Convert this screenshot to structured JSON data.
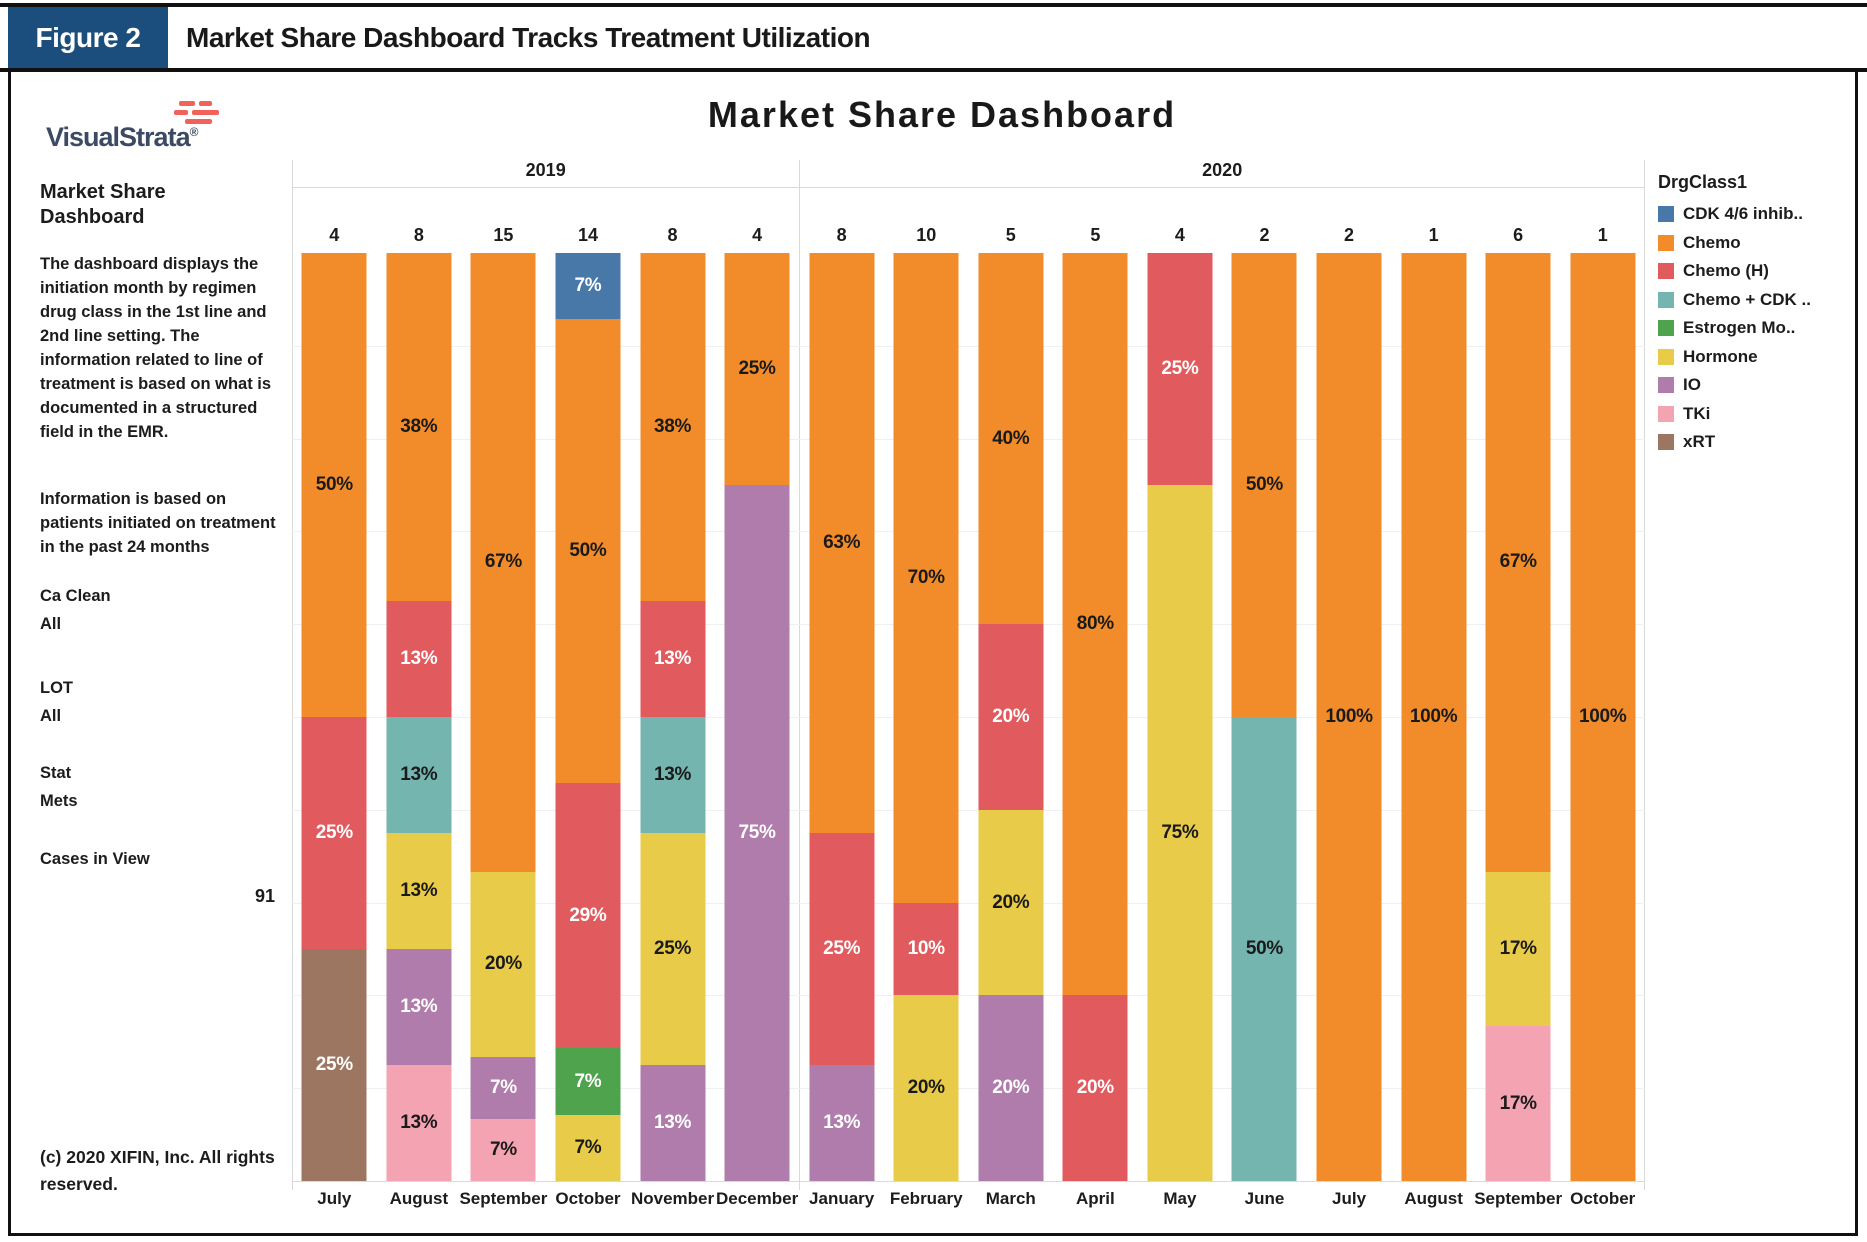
{
  "figure": {
    "label": "Figure 2",
    "title": "Market Share Dashboard Tracks Treatment Utilization"
  },
  "sidebar": {
    "logo_text": "VisualStrata",
    "logo_reg": "®",
    "heading": "Market Share\nDashboard",
    "para1": "The dashboard displays the initiation month by regimen drug class in the 1st line and 2nd line setting. The information related to line of treatment is based on what is documented in a structured field in the EMR.",
    "para2": "Information is based on patients initiated on treatment in the past 24 months",
    "filters": [
      {
        "label": "Ca Clean",
        "value": "All"
      },
      {
        "label": "LOT",
        "value": "All"
      },
      {
        "label": "Stat",
        "value": "Mets"
      }
    ],
    "cases_label": "Cases in View",
    "cases_value": "91",
    "copyright": "(c) 2020 XIFIN, Inc. All rights reserved."
  },
  "chart_title": "Market Share Dashboard",
  "chart_data": {
    "type": "bar",
    "stacked": true,
    "orientation": "vertical",
    "units": "percent of cases per month",
    "title": "Market Share Dashboard",
    "legend_position": "right",
    "grid": "horizontal, every 10%",
    "ylim": [
      0,
      100
    ],
    "legend": {
      "title": "DrgClass1",
      "items": [
        {
          "label": "CDK 4/6 inhib..",
          "color": "#4878a8"
        },
        {
          "label": "Chemo",
          "color": "#f28c2a"
        },
        {
          "label": "Chemo (H)",
          "color": "#e05a5e"
        },
        {
          "label": "Chemo + CDK ..",
          "color": "#74b5b0"
        },
        {
          "label": "Estrogen Mo..",
          "color": "#4ea34c"
        },
        {
          "label": "Hormone",
          "color": "#e9cb4a"
        },
        {
          "label": "IO",
          "color": "#b07cab"
        },
        {
          "label": "TKi",
          "color": "#f4a3b2"
        },
        {
          "label": "xRT",
          "color": "#9c7660"
        }
      ]
    },
    "colors": {
      "CDK 4/6 inhib..": "#4878a8",
      "Chemo": "#f28c2a",
      "Chemo (H)": "#e05a5e",
      "Chemo + CDK ..": "#74b5b0",
      "Estrogen Mo..": "#4ea34c",
      "Hormone": "#e9cb4a",
      "IO": "#b07cab",
      "TKi": "#f4a3b2",
      "xRT": "#9c7660"
    },
    "label_colors": {
      "CDK 4/6 inhib..": "#ffffff",
      "Chemo": "#1a1a1a",
      "Chemo (H)": "#ffffff",
      "Chemo + CDK ..": "#1a1a1a",
      "Estrogen Mo..": "#ffffff",
      "Hormone": "#1a1a1a",
      "IO": "#ffffff",
      "TKi": "#1a1a1a",
      "xRT": "#ffffff"
    },
    "groups": [
      {
        "year": "2019",
        "months": [
          {
            "label": "July",
            "count": 4,
            "segments": [
              {
                "cls": "Chemo",
                "pct": 50,
                "text": "50%"
              },
              {
                "cls": "Chemo (H)",
                "pct": 25,
                "text": "25%"
              },
              {
                "cls": "xRT",
                "pct": 25,
                "text": "25%"
              }
            ]
          },
          {
            "label": "August",
            "count": 8,
            "segments": [
              {
                "cls": "Chemo",
                "pct": 37.5,
                "text": "38%"
              },
              {
                "cls": "Chemo (H)",
                "pct": 12.5,
                "text": "13%"
              },
              {
                "cls": "Chemo + CDK ..",
                "pct": 12.5,
                "text": "13%"
              },
              {
                "cls": "Hormone",
                "pct": 12.5,
                "text": "13%"
              },
              {
                "cls": "IO",
                "pct": 12.5,
                "text": "13%"
              },
              {
                "cls": "TKi",
                "pct": 12.5,
                "text": "13%"
              }
            ]
          },
          {
            "label": "September",
            "count": 15,
            "segments": [
              {
                "cls": "Chemo",
                "pct": 66.66,
                "text": "67%"
              },
              {
                "cls": "Hormone",
                "pct": 20,
                "text": "20%"
              },
              {
                "cls": "IO",
                "pct": 6.67,
                "text": "7%"
              },
              {
                "cls": "TKi",
                "pct": 6.67,
                "text": "7%"
              }
            ]
          },
          {
            "label": "October",
            "count": 14,
            "segments": [
              {
                "cls": "CDK 4/6 inhib..",
                "pct": 7.14,
                "text": "7%"
              },
              {
                "cls": "Chemo",
                "pct": 50,
                "text": "50%"
              },
              {
                "cls": "Chemo (H)",
                "pct": 28.58,
                "text": "29%"
              },
              {
                "cls": "Estrogen Mo..",
                "pct": 7.14,
                "text": "7%"
              },
              {
                "cls": "Hormone",
                "pct": 7.14,
                "text": "7%"
              }
            ]
          },
          {
            "label": "November",
            "count": 8,
            "segments": [
              {
                "cls": "Chemo",
                "pct": 37.5,
                "text": "38%"
              },
              {
                "cls": "Chemo (H)",
                "pct": 12.5,
                "text": "13%"
              },
              {
                "cls": "Chemo + CDK ..",
                "pct": 12.5,
                "text": "13%"
              },
              {
                "cls": "Hormone",
                "pct": 25,
                "text": "25%"
              },
              {
                "cls": "IO",
                "pct": 12.5,
                "text": "13%"
              }
            ]
          },
          {
            "label": "December",
            "count": 4,
            "segments": [
              {
                "cls": "Chemo",
                "pct": 25,
                "text": "25%"
              },
              {
                "cls": "IO",
                "pct": 75,
                "text": "75%"
              }
            ]
          }
        ]
      },
      {
        "year": "2020",
        "months": [
          {
            "label": "January",
            "count": 8,
            "segments": [
              {
                "cls": "Chemo",
                "pct": 62.5,
                "text": "63%"
              },
              {
                "cls": "Chemo (H)",
                "pct": 25,
                "text": "25%"
              },
              {
                "cls": "IO",
                "pct": 12.5,
                "text": "13%"
              }
            ]
          },
          {
            "label": "February",
            "count": 10,
            "segments": [
              {
                "cls": "Chemo",
                "pct": 70,
                "text": "70%"
              },
              {
                "cls": "Chemo (H)",
                "pct": 10,
                "text": "10%"
              },
              {
                "cls": "Hormone",
                "pct": 20,
                "text": "20%"
              }
            ]
          },
          {
            "label": "March",
            "count": 5,
            "segments": [
              {
                "cls": "Chemo",
                "pct": 40,
                "text": "40%"
              },
              {
                "cls": "Chemo (H)",
                "pct": 20,
                "text": "20%"
              },
              {
                "cls": "Hormone",
                "pct": 20,
                "text": "20%"
              },
              {
                "cls": "IO",
                "pct": 20,
                "text": "20%"
              }
            ]
          },
          {
            "label": "April",
            "count": 5,
            "segments": [
              {
                "cls": "Chemo",
                "pct": 80,
                "text": "80%"
              },
              {
                "cls": "Chemo (H)",
                "pct": 20,
                "text": "20%"
              }
            ]
          },
          {
            "label": "May",
            "count": 4,
            "segments": [
              {
                "cls": "Chemo (H)",
                "pct": 25,
                "text": "25%"
              },
              {
                "cls": "Hormone",
                "pct": 75,
                "text": "75%"
              }
            ]
          },
          {
            "label": "June",
            "count": 2,
            "segments": [
              {
                "cls": "Chemo",
                "pct": 50,
                "text": "50%"
              },
              {
                "cls": "Chemo + CDK ..",
                "pct": 50,
                "text": "50%"
              }
            ]
          },
          {
            "label": "July",
            "count": 2,
            "segments": [
              {
                "cls": "Chemo",
                "pct": 100,
                "text": "100%"
              }
            ]
          },
          {
            "label": "August",
            "count": 1,
            "segments": [
              {
                "cls": "Chemo",
                "pct": 100,
                "text": "100%"
              }
            ]
          },
          {
            "label": "September",
            "count": 6,
            "segments": [
              {
                "cls": "Chemo",
                "pct": 66.66,
                "text": "67%"
              },
              {
                "cls": "Hormone",
                "pct": 16.67,
                "text": "17%"
              },
              {
                "cls": "TKi",
                "pct": 16.67,
                "text": "17%"
              }
            ]
          },
          {
            "label": "October",
            "count": 1,
            "segments": [
              {
                "cls": "Chemo",
                "pct": 100,
                "text": "100%"
              }
            ]
          }
        ]
      }
    ]
  }
}
